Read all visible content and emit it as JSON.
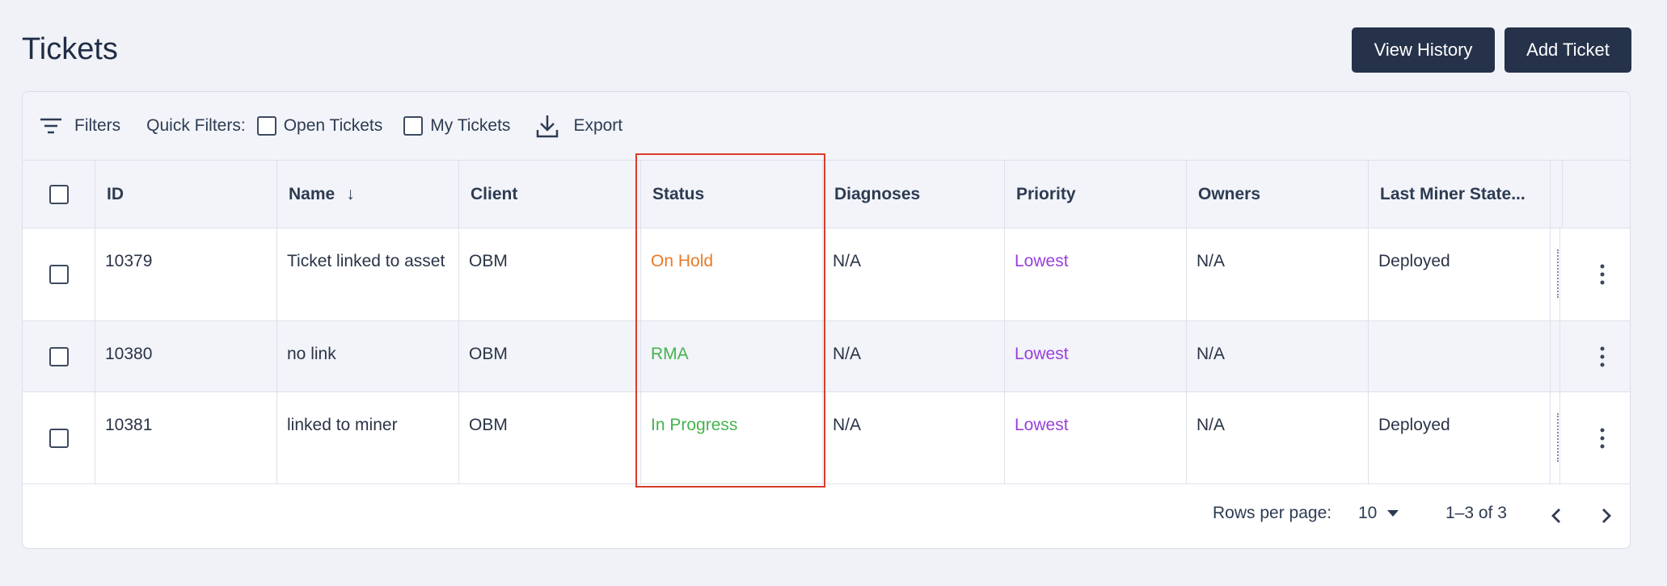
{
  "page": {
    "title": "Tickets"
  },
  "header_buttons": {
    "view_history": "View History",
    "add_ticket": "Add Ticket"
  },
  "toolbar": {
    "filters": "Filters",
    "quick_filters": "Quick Filters:",
    "open_tickets": "Open Tickets",
    "my_tickets": "My Tickets",
    "export": "Export"
  },
  "table": {
    "columns": [
      "ID",
      "Name",
      "Client",
      "Status",
      "Diagnoses",
      "Priority",
      "Owners",
      "Last Miner State..."
    ],
    "sort_indicator": "↓",
    "rows": [
      {
        "id": "10379",
        "name": "Ticket linked to asset",
        "client": "OBM",
        "status": "On Hold",
        "diagnoses": "N/A",
        "priority": "Lowest",
        "owners": "N/A",
        "last_state": "Deployed"
      },
      {
        "id": "10380",
        "name": "no link",
        "client": "OBM",
        "status": "RMA",
        "diagnoses": "N/A",
        "priority": "Lowest",
        "owners": "N/A",
        "last_state": ""
      },
      {
        "id": "10381",
        "name": "linked to miner",
        "client": "OBM",
        "status": "In Progress",
        "diagnoses": "N/A",
        "priority": "Lowest",
        "owners": "N/A",
        "last_state": "Deployed"
      }
    ]
  },
  "pagination": {
    "rows_per_page_label": "Rows per page:",
    "rows_per_page_value": "10",
    "range": "1–3 of 3"
  },
  "colors": {
    "status_on_hold": "#e97a27",
    "status_rma": "#46b24f",
    "status_in_progress": "#46b24f",
    "priority": "#9a3fdc",
    "highlight": "#dc3b2a",
    "button": "#25324a"
  },
  "icons": [
    "filter-icon",
    "download-icon",
    "sort-down-icon",
    "kebab-menu-icon",
    "caret-down-icon",
    "chevron-left-icon",
    "chevron-right-icon"
  ]
}
